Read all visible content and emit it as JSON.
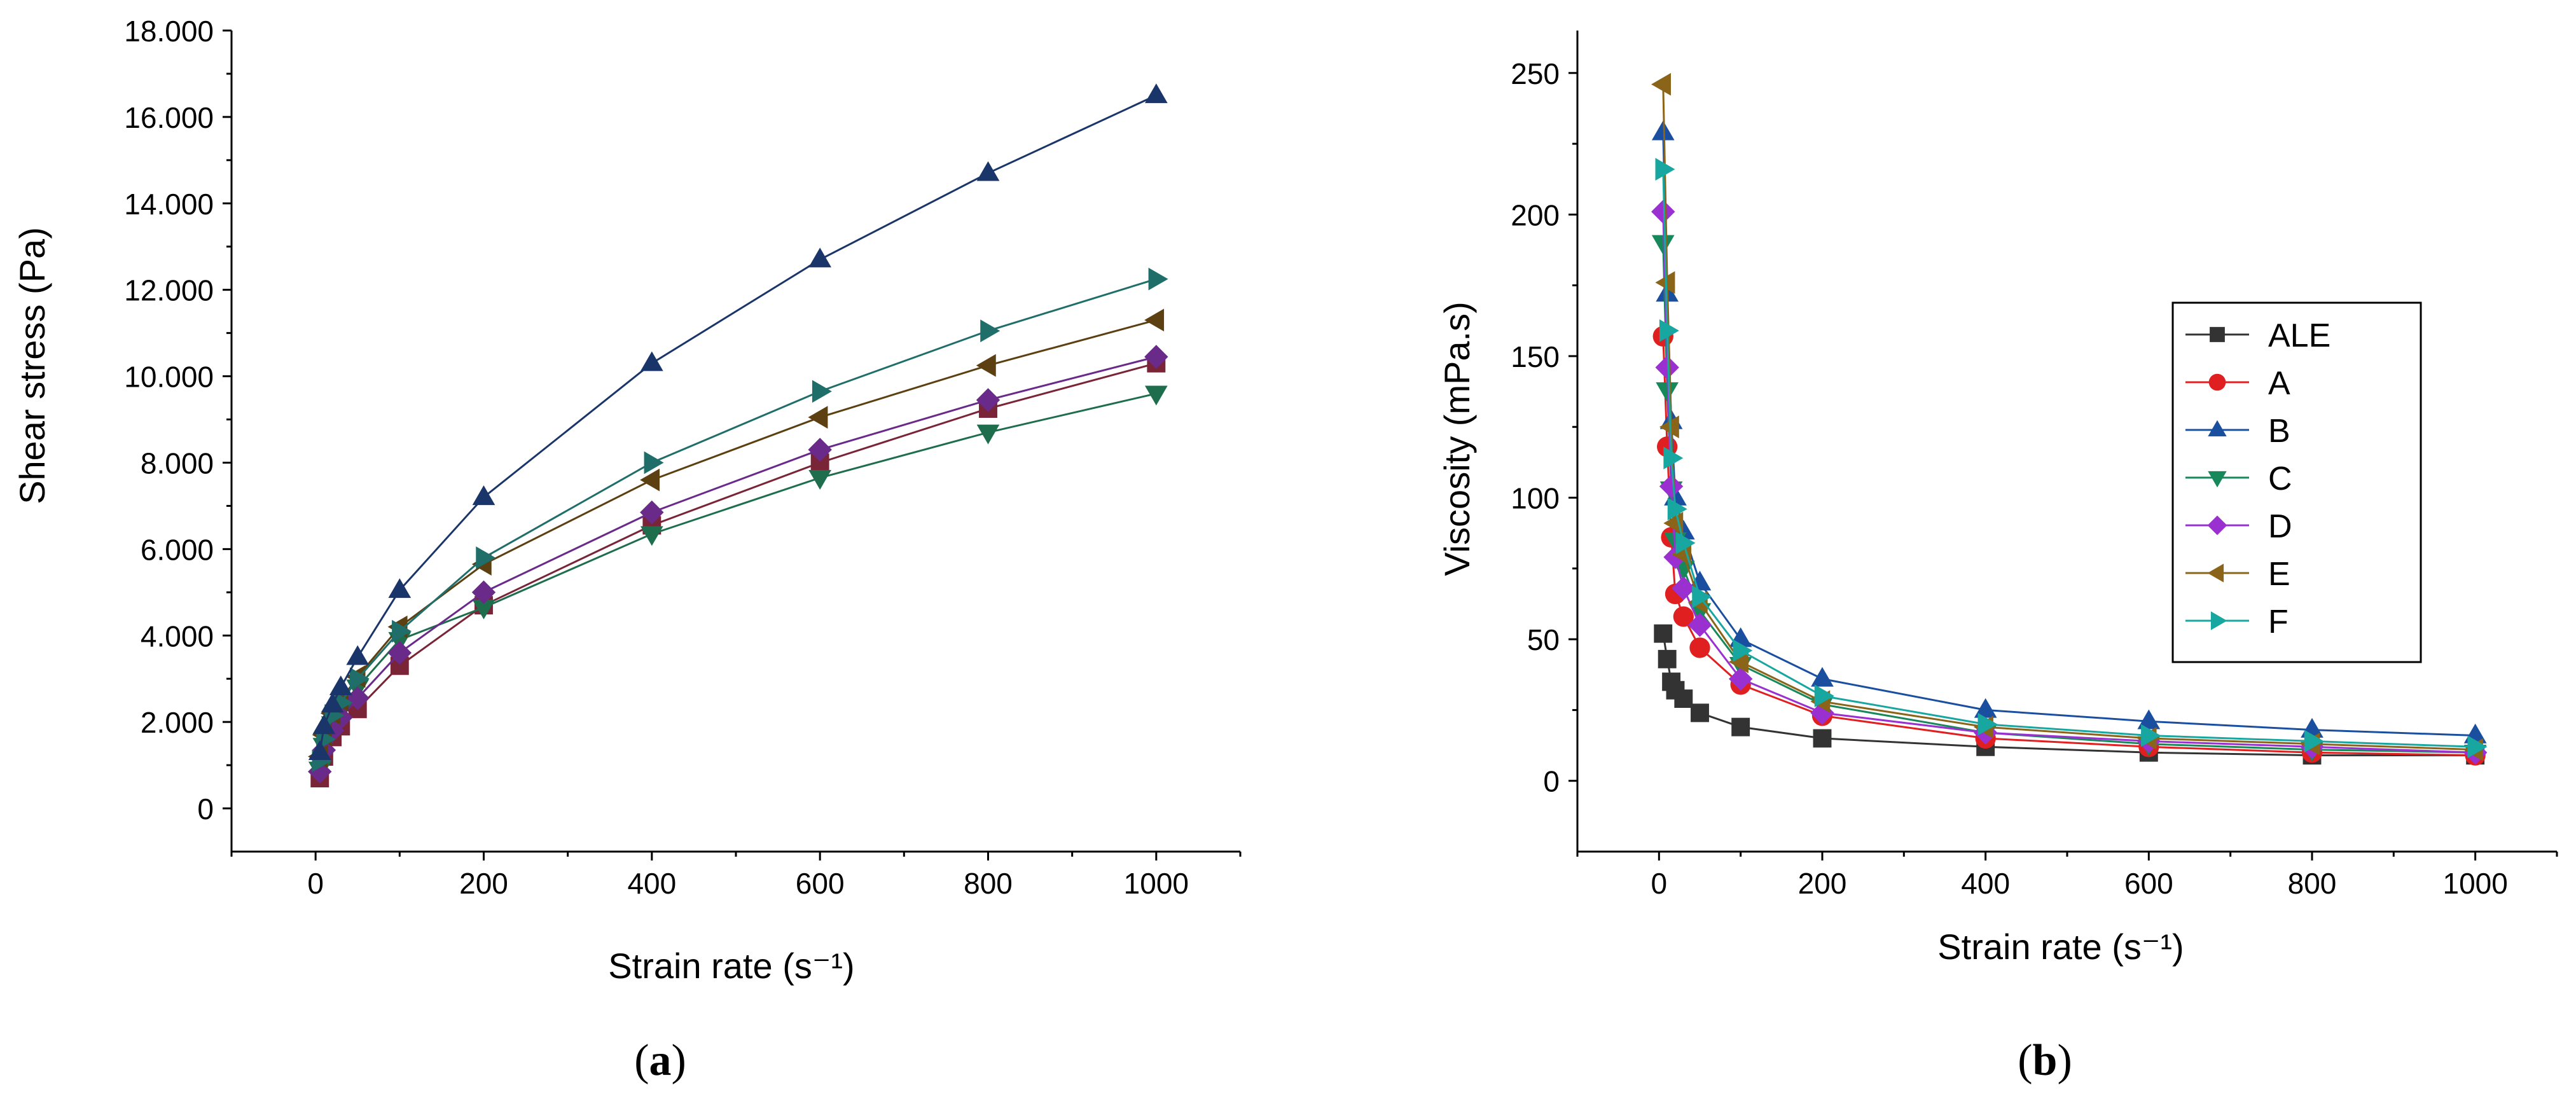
{
  "chart_data": [
    {
      "type": "line",
      "panel_label": "(a)",
      "panel_letter": "a",
      "xlabel": "Strain rate (s⁻¹)",
      "ylabel": "Shear stress (Pa)",
      "xlim": [
        -100,
        1100
      ],
      "ylim": [
        -1000,
        18000
      ],
      "xticks": [
        0,
        200,
        400,
        600,
        800,
        1000
      ],
      "xtick_labels": [
        "0",
        "200",
        "400",
        "600",
        "800",
        "1000"
      ],
      "yticks": [
        0,
        2000,
        4000,
        6000,
        8000,
        10000,
        12000,
        14000,
        16000,
        18000
      ],
      "ytick_labels": [
        "0",
        "2.000",
        "4.000",
        "6.000",
        "8.000",
        "10.000",
        "12.000",
        "14.000",
        "16.000",
        "18.000"
      ],
      "x": [
        5,
        10,
        20,
        30,
        50,
        100,
        200,
        400,
        600,
        800,
        1000
      ],
      "series": [
        {
          "name": "A",
          "color": "#7a2438",
          "marker": "square",
          "values": [
            700,
            1200,
            1650,
            1900,
            2300,
            3300,
            4700,
            6550,
            8000,
            9250,
            10300
          ]
        },
        {
          "name": "C",
          "color": "#1e6e4e",
          "marker": "tri-down",
          "values": [
            900,
            1450,
            1950,
            2250,
            2800,
            3900,
            4650,
            6350,
            7650,
            8700,
            9600
          ]
        },
        {
          "name": "D",
          "color": "#6a2a8a",
          "marker": "diamond",
          "values": [
            850,
            1350,
            1800,
            2100,
            2550,
            3600,
            5000,
            6850,
            8300,
            9450,
            10450
          ]
        },
        {
          "name": "E",
          "color": "#5c4011",
          "marker": "tri-left",
          "values": [
            1200,
            1700,
            2200,
            2500,
            3050,
            4200,
            5650,
            7600,
            9050,
            10250,
            11300
          ]
        },
        {
          "name": "F",
          "color": "#1f6e6a",
          "marker": "tri-right",
          "values": [
            1100,
            1600,
            2150,
            2450,
            3000,
            4100,
            5800,
            8000,
            9650,
            11050,
            12250
          ]
        },
        {
          "name": "B",
          "color": "#1a3569",
          "marker": "tri-up",
          "values": [
            1300,
            1900,
            2400,
            2800,
            3500,
            5050,
            7200,
            10300,
            12700,
            14700,
            16500
          ]
        }
      ]
    },
    {
      "type": "line",
      "panel_label": "(b)",
      "panel_letter": "b",
      "xlabel": "Strain rate (s⁻¹)",
      "ylabel": "Viscosity (mPa.s)",
      "xlim": [
        -100,
        1100
      ],
      "ylim": [
        -25,
        265
      ],
      "xticks": [
        0,
        200,
        400,
        600,
        800,
        1000
      ],
      "xtick_labels": [
        "0",
        "200",
        "400",
        "600",
        "800",
        "1000"
      ],
      "yticks": [
        0,
        50,
        100,
        150,
        200,
        250
      ],
      "ytick_labels": [
        "0",
        "50",
        "100",
        "150",
        "200",
        "250"
      ],
      "x": [
        5,
        10,
        15,
        20,
        30,
        50,
        100,
        200,
        400,
        600,
        800,
        1000
      ],
      "legend": "right-middle",
      "series": [
        {
          "name": "ALE",
          "color": "#333333",
          "marker": "square",
          "values": [
            52,
            43,
            35,
            32,
            29,
            24,
            19,
            15,
            12,
            10,
            9,
            9
          ]
        },
        {
          "name": "A",
          "color": "#e02020",
          "marker": "circle",
          "values": [
            157,
            118,
            86,
            66,
            58,
            47,
            34,
            23,
            15,
            12,
            10,
            9
          ]
        },
        {
          "name": "B",
          "color": "#1a4fa0",
          "marker": "tri-up",
          "values": [
            229,
            172,
            127,
            100,
            88,
            70,
            50,
            36,
            25,
            21,
            18,
            16
          ]
        },
        {
          "name": "C",
          "color": "#16885a",
          "marker": "tri-down",
          "values": [
            190,
            138,
            103,
            85,
            75,
            60,
            41,
            27,
            17,
            13,
            11,
            10
          ]
        },
        {
          "name": "D",
          "color": "#9b30d0",
          "marker": "diamond",
          "values": [
            201,
            146,
            104,
            79,
            68,
            55,
            36,
            24,
            17,
            14,
            12,
            10
          ]
        },
        {
          "name": "E",
          "color": "#8a6418",
          "marker": "tri-left",
          "values": [
            246,
            176,
            125,
            91,
            80,
            63,
            42,
            28,
            19,
            15,
            13,
            11
          ]
        },
        {
          "name": "F",
          "color": "#18a7a0",
          "marker": "tri-right",
          "values": [
            216,
            159,
            114,
            96,
            84,
            65,
            46,
            30,
            20,
            16,
            14,
            12
          ]
        }
      ]
    }
  ]
}
